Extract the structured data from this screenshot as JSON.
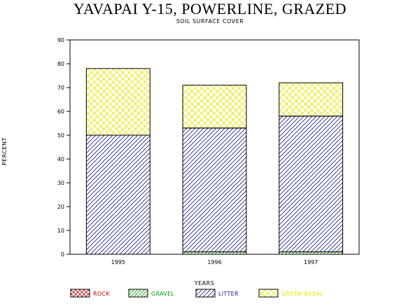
{
  "chart_data": {
    "type": "bar",
    "stacked": true,
    "title": "YAVAPAI Y-15, POWERLINE, GRAZED",
    "subtitle": "SOIL SURFACE COVER",
    "xlabel": "YEARS",
    "ylabel": "PERCENT",
    "ylim": [
      0,
      90
    ],
    "yticks": [
      "0",
      "10",
      "20",
      "30",
      "40",
      "50",
      "60",
      "70",
      "80",
      "90"
    ],
    "categories": [
      "1995",
      "1996",
      "1997"
    ],
    "series": [
      {
        "name": "ROCK",
        "values": [
          0,
          0,
          0
        ],
        "color": "#cc0000"
      },
      {
        "name": "GRAVEL",
        "values": [
          0,
          1,
          1
        ],
        "color": "#00a000"
      },
      {
        "name": "LITTER",
        "values": [
          50,
          52,
          57
        ],
        "color": "#1a1a8c"
      },
      {
        "name": "GREEN BASAL",
        "values": [
          28,
          18,
          14
        ],
        "color": "#e6e600"
      }
    ],
    "grid": false,
    "legend_position": "bottom"
  }
}
